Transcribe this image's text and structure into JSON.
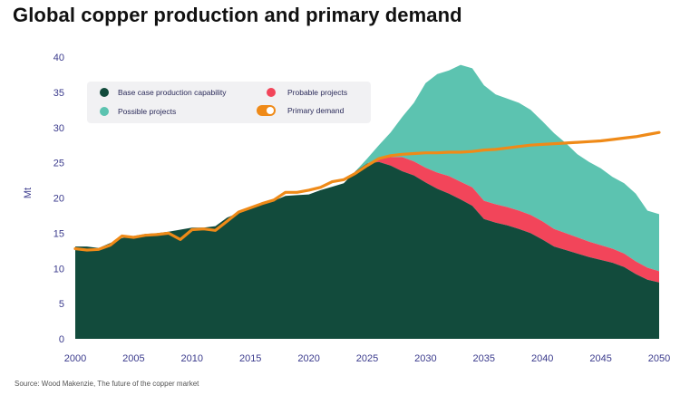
{
  "title": "Global copper production and primary demand",
  "source": "Source: Wood Makenzie, The future of the copper market",
  "colors": {
    "base": "#124b3c",
    "probable": "#f2455a",
    "possible": "#5cc3b0",
    "demand": "#ef8a18",
    "axis_text": "#3a3a8c"
  },
  "chart_data": {
    "type": "area",
    "title": "Global copper production and primary demand",
    "xlabel": "",
    "ylabel": "Mt",
    "xlim": [
      2000,
      2050
    ],
    "ylim": [
      0,
      40
    ],
    "x_ticks": [
      2000,
      2005,
      2010,
      2015,
      2020,
      2025,
      2030,
      2035,
      2040,
      2045,
      2050
    ],
    "y_ticks": [
      0,
      5,
      10,
      15,
      20,
      25,
      30,
      35,
      40
    ],
    "grid": false,
    "legend_position": "top-left",
    "x": [
      2000,
      2001,
      2002,
      2003,
      2004,
      2005,
      2006,
      2007,
      2008,
      2009,
      2010,
      2011,
      2012,
      2013,
      2014,
      2015,
      2016,
      2017,
      2018,
      2019,
      2020,
      2021,
      2022,
      2023,
      2024,
      2025,
      2026,
      2027,
      2028,
      2029,
      2030,
      2031,
      2032,
      2033,
      2034,
      2035,
      2036,
      2037,
      2038,
      2039,
      2040,
      2041,
      2042,
      2043,
      2044,
      2045,
      2046,
      2047,
      2048,
      2049,
      2050
    ],
    "series": [
      {
        "name": "Base case production capability",
        "values": [
          13.1,
          13.1,
          12.9,
          13.6,
          14.3,
          14.6,
          14.9,
          15.0,
          15.2,
          15.5,
          15.8,
          15.8,
          16.0,
          17.2,
          17.9,
          18.7,
          19.4,
          19.6,
          20.3,
          20.4,
          20.5,
          21.1,
          21.6,
          22.1,
          23.8,
          24.9,
          25.1,
          24.6,
          23.8,
          23.2,
          22.2,
          21.3,
          20.6,
          19.8,
          18.9,
          17.0,
          16.5,
          16.1,
          15.6,
          15.0,
          14.1,
          13.1,
          12.6,
          12.1,
          11.6,
          11.2,
          10.8,
          10.2,
          9.2,
          8.4,
          8.0
        ]
      },
      {
        "name": "Probable projects",
        "values": [
          0,
          0,
          0,
          0,
          0,
          0,
          0,
          0,
          0,
          0,
          0,
          0,
          0,
          0,
          0,
          0,
          0,
          0,
          0,
          0,
          0,
          0,
          0,
          0,
          0,
          0,
          0.4,
          1.2,
          2.0,
          2.0,
          2.1,
          2.3,
          2.5,
          2.5,
          2.6,
          2.6,
          2.6,
          2.6,
          2.6,
          2.6,
          2.6,
          2.5,
          2.4,
          2.3,
          2.2,
          2.1,
          2.0,
          1.9,
          1.8,
          1.7,
          1.6
        ]
      },
      {
        "name": "Possible projects",
        "values": [
          0,
          0,
          0,
          0,
          0,
          0,
          0,
          0,
          0,
          0,
          0,
          0,
          0,
          0,
          0,
          0,
          0,
          0,
          0,
          0,
          0,
          0,
          0,
          0,
          0,
          0.7,
          2.0,
          3.5,
          5.7,
          8.3,
          12.0,
          14.0,
          15.0,
          16.6,
          16.9,
          16.4,
          15.6,
          15.4,
          15.3,
          14.9,
          14.2,
          13.6,
          12.8,
          11.8,
          11.3,
          10.9,
          10.2,
          10.0,
          9.6,
          8.1,
          8.1
        ]
      },
      {
        "name": "Primary demand",
        "values": [
          12.8,
          12.6,
          12.7,
          13.3,
          14.6,
          14.4,
          14.7,
          14.8,
          15.0,
          14.1,
          15.5,
          15.6,
          15.4,
          16.7,
          18.0,
          18.6,
          19.2,
          19.7,
          20.8,
          20.8,
          21.1,
          21.5,
          22.3,
          22.6,
          23.5,
          24.6,
          25.6,
          26.0,
          26.2,
          26.3,
          26.4,
          26.4,
          26.5,
          26.5,
          26.6,
          26.8,
          26.9,
          27.1,
          27.3,
          27.5,
          27.6,
          27.7,
          27.8,
          27.9,
          28.0,
          28.1,
          28.3,
          28.5,
          28.7,
          29.0,
          29.3
        ]
      }
    ]
  }
}
